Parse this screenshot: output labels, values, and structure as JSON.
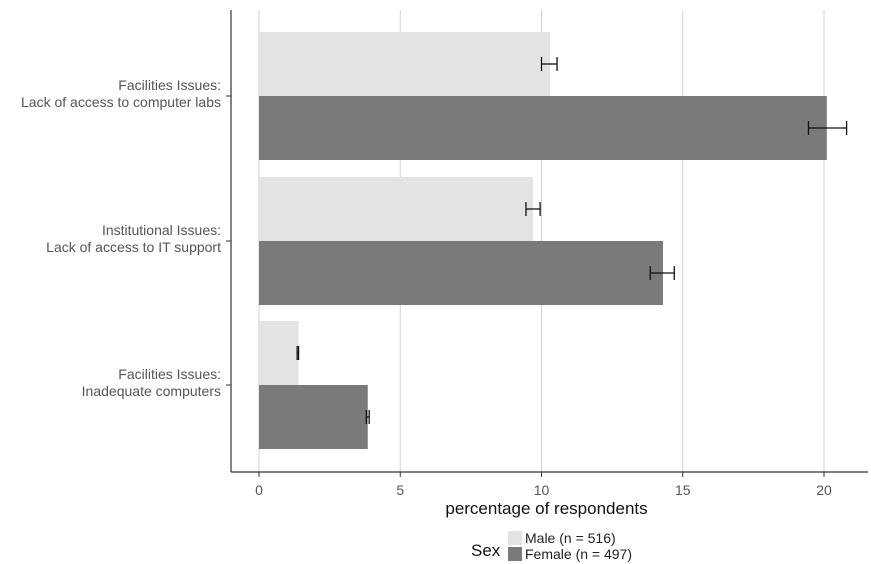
{
  "chart_data": {
    "type": "bar",
    "orientation": "horizontal",
    "categories": [
      [
        "Facilities Issues:",
        "Lack of access to computer labs"
      ],
      [
        "Institutional Issues:",
        "Lack of access to IT support"
      ],
      [
        "Facilities Issues:",
        "Inadequate computers"
      ]
    ],
    "series": [
      {
        "name": "Male (n = 516)",
        "color": "#e3e3e3",
        "values": [
          10.3,
          9.7,
          1.4
        ],
        "error_low": [
          10.0,
          9.45,
          1.35
        ],
        "error_high": [
          10.55,
          9.95,
          1.4
        ]
      },
      {
        "name": "Female (n = 497)",
        "color": "#7a7a7a",
        "values": [
          20.1,
          14.3,
          3.85
        ],
        "error_low": [
          19.45,
          13.85,
          3.8
        ],
        "error_high": [
          20.8,
          14.7,
          3.9
        ]
      }
    ],
    "xlabel": "percentage of respondents",
    "xlim": [
      0,
      21
    ],
    "xticks": [
      0,
      5,
      10,
      15,
      20
    ],
    "grid": "vertical",
    "legend": {
      "title": "Sex",
      "position": "bottom"
    }
  }
}
